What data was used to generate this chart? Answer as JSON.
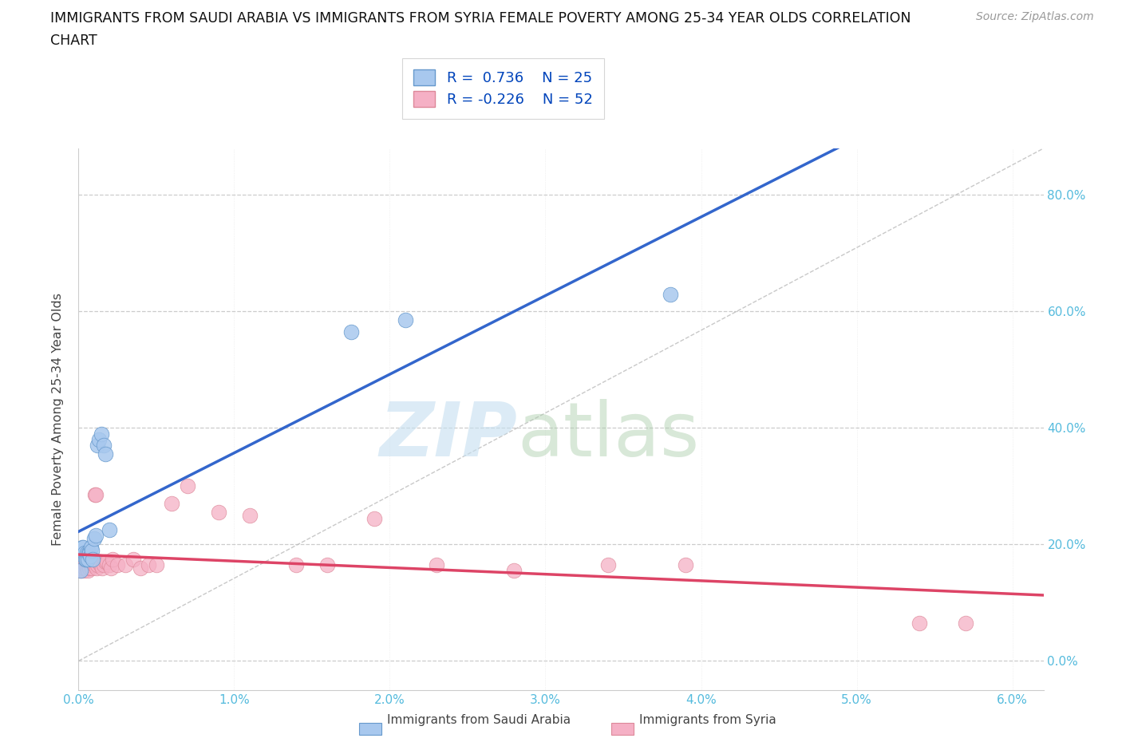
{
  "title_line1": "IMMIGRANTS FROM SAUDI ARABIA VS IMMIGRANTS FROM SYRIA FEMALE POVERTY AMONG 25-34 YEAR OLDS CORRELATION",
  "title_line2": "CHART",
  "source": "Source: ZipAtlas.com",
  "ylabel": "Female Poverty Among 25-34 Year Olds",
  "xlim": [
    0.0,
    0.062
  ],
  "ylim": [
    -0.05,
    0.88
  ],
  "plot_ylim": [
    0.0,
    0.88
  ],
  "yticks": [
    0.0,
    0.2,
    0.4,
    0.6,
    0.8
  ],
  "ytick_labels": [
    "0.0%",
    "20.0%",
    "40.0%",
    "60.0%",
    "80.0%"
  ],
  "xticks": [
    0.0,
    0.01,
    0.02,
    0.03,
    0.04,
    0.05,
    0.06
  ],
  "xtick_labels": [
    "0.0%",
    "1.0%",
    "2.0%",
    "3.0%",
    "4.0%",
    "5.0%",
    "6.0%"
  ],
  "saudi_R": "0.736",
  "saudi_N": "25",
  "syria_R": "-0.226",
  "syria_N": "52",
  "saudi_color": "#A8C8EE",
  "saudi_edge_color": "#6699CC",
  "syria_color": "#F5B0C5",
  "syria_edge_color": "#DD8899",
  "saudi_line_color": "#3366CC",
  "syria_line_color": "#DD4466",
  "diagonal_color": "#BBBBBB",
  "grid_color": "#CCCCCC",
  "axis_tick_color": "#55BBDD",
  "background_color": "#FFFFFF",
  "saudi_x": [
    0.00015,
    0.00025,
    0.0003,
    0.0004,
    0.00045,
    0.0005,
    0.00055,
    0.0006,
    0.00065,
    0.0007,
    0.00075,
    0.0008,
    0.00085,
    0.0009,
    0.001,
    0.0011,
    0.0012,
    0.0013,
    0.00145,
    0.0016,
    0.0017,
    0.002,
    0.0175,
    0.021,
    0.038
  ],
  "saudi_y": [
    0.155,
    0.195,
    0.195,
    0.185,
    0.175,
    0.175,
    0.185,
    0.175,
    0.185,
    0.185,
    0.18,
    0.195,
    0.19,
    0.175,
    0.21,
    0.215,
    0.37,
    0.38,
    0.39,
    0.37,
    0.355,
    0.225,
    0.565,
    0.585,
    0.63
  ],
  "syria_x": [
    5e-05,
    0.0001,
    0.00015,
    0.0002,
    0.00025,
    0.0003,
    0.00035,
    0.0004,
    0.00045,
    0.0005,
    0.00055,
    0.0006,
    0.00065,
    0.0007,
    0.00075,
    0.0008,
    0.00085,
    0.0009,
    0.001,
    0.00105,
    0.0011,
    0.00115,
    0.0012,
    0.00125,
    0.0013,
    0.0014,
    0.0015,
    0.0016,
    0.0017,
    0.0018,
    0.002,
    0.0021,
    0.0022,
    0.0025,
    0.003,
    0.0035,
    0.004,
    0.0045,
    0.005,
    0.006,
    0.007,
    0.009,
    0.011,
    0.014,
    0.016,
    0.019,
    0.023,
    0.028,
    0.034,
    0.039,
    0.054,
    0.057
  ],
  "syria_y": [
    0.16,
    0.165,
    0.155,
    0.16,
    0.17,
    0.165,
    0.155,
    0.16,
    0.165,
    0.17,
    0.16,
    0.155,
    0.165,
    0.16,
    0.17,
    0.165,
    0.16,
    0.17,
    0.165,
    0.285,
    0.285,
    0.16,
    0.165,
    0.17,
    0.17,
    0.165,
    0.16,
    0.165,
    0.17,
    0.17,
    0.165,
    0.16,
    0.175,
    0.165,
    0.165,
    0.175,
    0.16,
    0.165,
    0.165,
    0.27,
    0.3,
    0.255,
    0.25,
    0.165,
    0.165,
    0.245,
    0.165,
    0.155,
    0.165,
    0.165,
    0.065,
    0.065
  ]
}
